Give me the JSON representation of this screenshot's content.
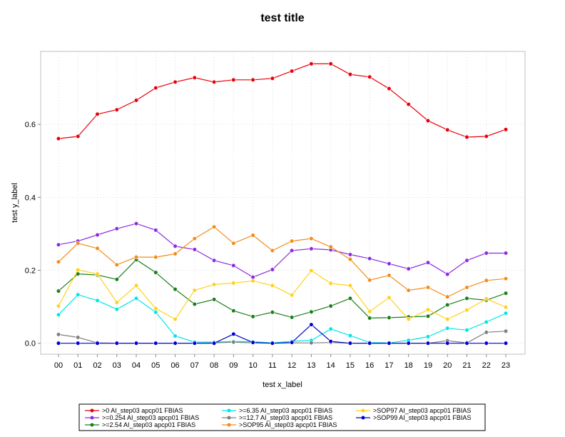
{
  "chart_data": {
    "type": "line",
    "title": "test title",
    "xlabel": "test x_label",
    "ylabel": "test y_label",
    "categories": [
      "00",
      "01",
      "02",
      "03",
      "04",
      "05",
      "06",
      "07",
      "08",
      "09",
      "10",
      "11",
      "12",
      "13",
      "14",
      "15",
      "16",
      "17",
      "18",
      "19",
      "20",
      "21",
      "22",
      "23"
    ],
    "ylim": [
      -0.03,
      0.8
    ],
    "yticks": [
      0.0,
      0.2,
      0.4,
      0.6
    ],
    "ytick_labels": [
      "0.0",
      "0.2",
      "0.4",
      "0.6"
    ],
    "grid": true,
    "legend_position": "bottom",
    "series": [
      {
        "name": ">0 AI_step03 apcp01 FBIAS",
        "color": "#e8000b",
        "values": [
          0.561,
          0.567,
          0.628,
          0.64,
          0.666,
          0.7,
          0.716,
          0.728,
          0.716,
          0.722,
          0.722,
          0.726,
          0.746,
          0.766,
          0.766,
          0.737,
          0.73,
          0.698,
          0.655,
          0.61,
          0.585,
          0.565,
          0.567,
          0.586
        ]
      },
      {
        "name": ">=0.254 AI_step03 apcp01 FBIAS",
        "color": "#8b2be2",
        "values": [
          0.27,
          0.28,
          0.297,
          0.314,
          0.328,
          0.31,
          0.266,
          0.257,
          0.227,
          0.213,
          0.181,
          0.202,
          0.254,
          0.259,
          0.256,
          0.243,
          0.232,
          0.218,
          0.204,
          0.221,
          0.189,
          0.227,
          0.247,
          0.247
        ]
      },
      {
        "name": ">=2.54 AI_step03 apcp01 FBIAS",
        "color": "#1a7f1a",
        "values": [
          0.143,
          0.19,
          0.187,
          0.175,
          0.229,
          0.194,
          0.148,
          0.107,
          0.12,
          0.089,
          0.073,
          0.085,
          0.071,
          0.086,
          0.102,
          0.123,
          0.069,
          0.07,
          0.072,
          0.074,
          0.105,
          0.123,
          0.118,
          0.137
        ]
      },
      {
        "name": ">=6.35 AI_step03 apcp01 FBIAS",
        "color": "#00e5e5",
        "values": [
          0.078,
          0.133,
          0.117,
          0.093,
          0.123,
          0.085,
          0.02,
          0.003,
          0.003,
          0.005,
          0.004,
          0.001,
          0.005,
          0.008,
          0.039,
          0.021,
          0.002,
          0.001,
          0.008,
          0.018,
          0.041,
          0.036,
          0.058,
          0.082
        ]
      },
      {
        "name": ">=12.7 AI_step03 apcp01 FBIAS",
        "color": "#808080",
        "values": [
          0.024,
          0.016,
          0.001,
          0.0,
          0.0,
          0.0,
          0.0,
          0.0,
          0.001,
          0.003,
          0.001,
          0.0,
          0.001,
          0.001,
          0.002,
          0.0,
          0.0,
          0.0,
          0.0,
          0.0,
          0.007,
          0.001,
          0.03,
          0.033
        ]
      },
      {
        "name": ">SOP95 AI_step03 apcp01 FBIAS",
        "color": "#f28c1a",
        "values": [
          0.223,
          0.274,
          0.26,
          0.215,
          0.236,
          0.236,
          0.245,
          0.287,
          0.319,
          0.274,
          0.296,
          0.254,
          0.28,
          0.287,
          0.264,
          0.23,
          0.173,
          0.186,
          0.145,
          0.153,
          0.127,
          0.153,
          0.172,
          0.177
        ]
      },
      {
        "name": ">SOP97 AI_step03 apcp01 FBIAS",
        "color": "#ffd21a",
        "values": [
          0.102,
          0.201,
          0.19,
          0.112,
          0.158,
          0.095,
          0.066,
          0.145,
          0.161,
          0.165,
          0.171,
          0.158,
          0.132,
          0.199,
          0.164,
          0.158,
          0.087,
          0.125,
          0.066,
          0.092,
          0.066,
          0.091,
          0.122,
          0.099
        ]
      },
      {
        "name": ">SOP99 AI_step03 apcp01 FBIAS",
        "color": "#0000cc",
        "values": [
          0.0,
          0.0,
          0.0,
          0.0,
          0.0,
          0.0,
          0.0,
          0.0,
          0.0,
          0.025,
          0.002,
          0.0,
          0.002,
          0.051,
          0.005,
          0.0,
          0.0,
          0.0,
          0.0,
          0.0,
          0.0,
          0.0,
          0.0,
          0.0
        ]
      }
    ]
  }
}
